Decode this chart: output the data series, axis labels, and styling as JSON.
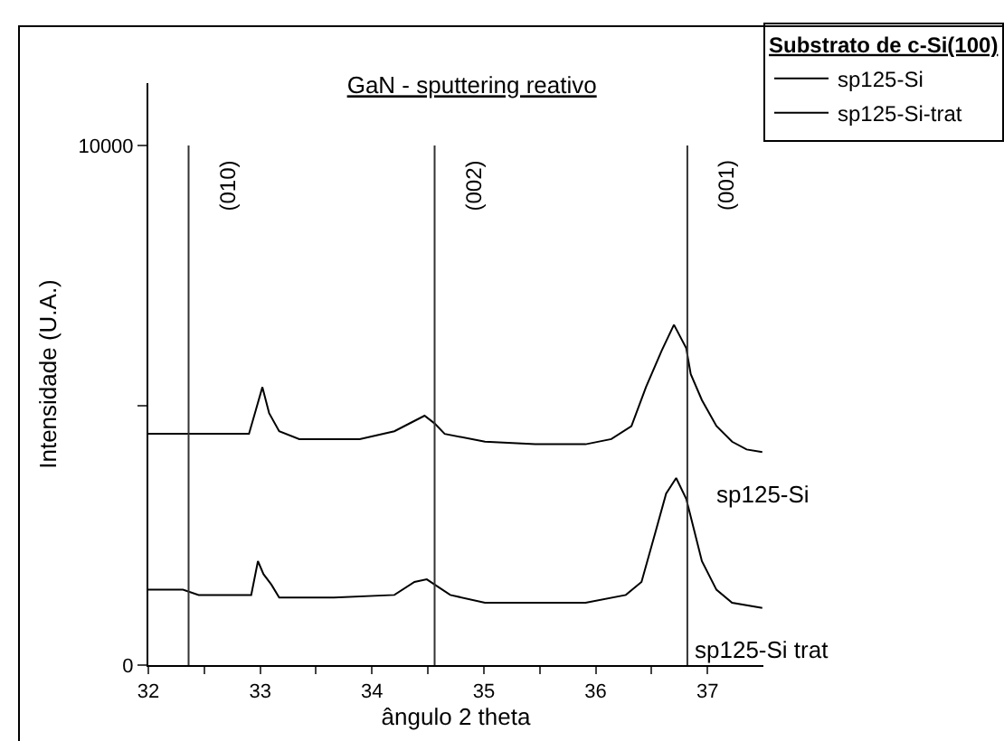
{
  "chart_data": {
    "type": "line",
    "title": "GaN - sputtering reativo",
    "xlabel": "ângulo 2 theta",
    "ylabel": "Intensidade (U.A.)",
    "legend_title": "Substrato de c-Si(100)",
    "legend": "top right",
    "grid": false,
    "marker": "none",
    "line_style": "solid",
    "xlim": [
      32,
      37.5
    ],
    "ylim": [
      0,
      11200
    ],
    "xticks": [
      32,
      {
        "value": 32.5,
        "label": null
      },
      33,
      {
        "value": 33.5,
        "label": null
      },
      34,
      {
        "value": 34.5,
        "label": null
      },
      35,
      {
        "value": 35.5,
        "label": null
      },
      36,
      {
        "value": 36.5,
        "label": null
      },
      37
    ],
    "yticks": [
      0,
      {
        "value": 5000,
        "label": null
      },
      10000
    ],
    "series": [
      {
        "name": "sp125-Si",
        "color": "#000000",
        "x": [
          32.0,
          32.31,
          32.9,
          32.96,
          33.02,
          33.08,
          33.17,
          33.35,
          33.89,
          34.2,
          34.38,
          34.47,
          34.56,
          34.65,
          35.01,
          35.46,
          35.91,
          36.14,
          36.32,
          36.45,
          36.59,
          36.7,
          36.81,
          36.85,
          36.95,
          37.08,
          37.22,
          37.35,
          37.49
        ],
        "values": [
          4450,
          4450,
          4450,
          4900,
          5350,
          4850,
          4500,
          4350,
          4350,
          4500,
          4700,
          4800,
          4650,
          4450,
          4300,
          4250,
          4250,
          4350,
          4600,
          5350,
          6050,
          6550,
          6100,
          5600,
          5100,
          4600,
          4300,
          4150,
          4100
        ]
      },
      {
        "name": "sp125-Si-trat",
        "color": "#000000",
        "x": [
          32.0,
          32.31,
          32.45,
          32.92,
          32.98,
          33.03,
          33.1,
          33.17,
          33.66,
          34.2,
          34.38,
          34.49,
          34.56,
          34.7,
          35.01,
          35.46,
          35.91,
          36.27,
          36.41,
          36.54,
          36.63,
          36.72,
          36.81,
          36.95,
          37.08,
          37.22,
          37.49
        ],
        "values": [
          1450,
          1450,
          1350,
          1350,
          2000,
          1750,
          1550,
          1300,
          1300,
          1350,
          1600,
          1650,
          1550,
          1350,
          1200,
          1200,
          1200,
          1350,
          1600,
          2600,
          3300,
          3600,
          3200,
          2000,
          1450,
          1200,
          1100
        ]
      }
    ],
    "ref_lines": [
      {
        "axis": "x",
        "value": 32.36
      },
      {
        "axis": "x",
        "value": 34.56
      },
      {
        "axis": "x",
        "value": 36.82
      }
    ],
    "annotations": [
      "sp125-Si",
      "sp125-Si trat",
      {
        "text": "(010)",
        "x": 32.36,
        "y": 10000
      },
      {
        "text": "(002)",
        "x": 34.56,
        "y": 10000
      },
      {
        "text": "(001)",
        "x": 36.82,
        "y": 10000
      }
    ]
  }
}
